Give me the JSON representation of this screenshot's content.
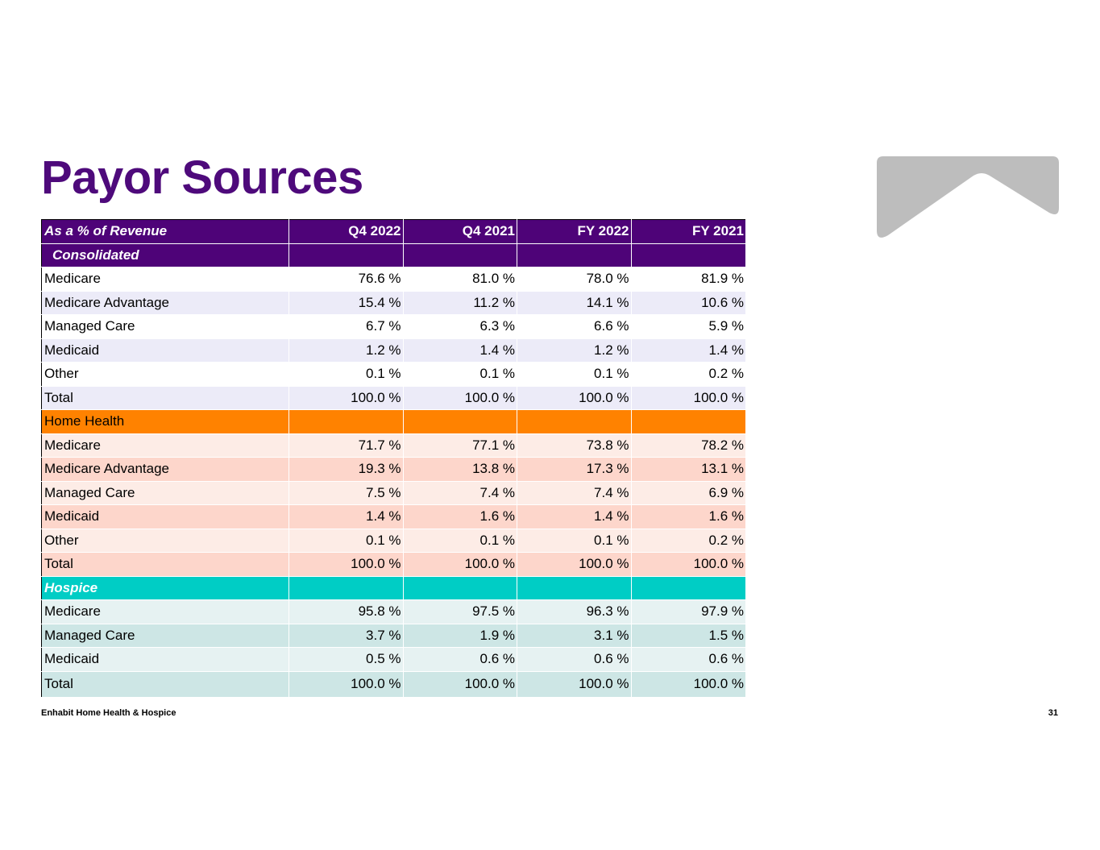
{
  "page": {
    "title": "Payor Sources",
    "footer_left": "Enhabit Home Health & Hospice",
    "page_number": "31"
  },
  "colors": {
    "brand_purple": "#4e0378",
    "home_health_orange": "#ff8200",
    "hospice_teal": "#00cdc5",
    "logo_gray": "#bdbdbd"
  },
  "table": {
    "headers": [
      "As a % of Revenue",
      "Q4 2022",
      "Q4 2021",
      "FY 2022",
      "FY 2021"
    ],
    "sections": [
      {
        "name": "Consolidated",
        "rows": [
          {
            "label": "Medicare",
            "values": [
              "76.6 %",
              "81.0 %",
              "78.0 %",
              "81.9 %"
            ]
          },
          {
            "label": "Medicare Advantage",
            "values": [
              "15.4 %",
              "11.2 %",
              "14.1 %",
              "10.6 %"
            ]
          },
          {
            "label": "Managed Care",
            "values": [
              "6.7 %",
              "6.3 %",
              "6.6 %",
              "5.9 %"
            ]
          },
          {
            "label": "Medicaid",
            "values": [
              "1.2 %",
              "1.4 %",
              "1.2 %",
              "1.4 %"
            ]
          },
          {
            "label": "Other",
            "values": [
              "0.1 %",
              "0.1 %",
              "0.1 %",
              "0.2 %"
            ]
          },
          {
            "label": "Total",
            "values": [
              "100.0 %",
              "100.0 %",
              "100.0 %",
              "100.0 %"
            ]
          }
        ]
      },
      {
        "name": "Home Health",
        "rows": [
          {
            "label": "Medicare",
            "values": [
              "71.7 %",
              "77.1 %",
              "73.8 %",
              "78.2 %"
            ]
          },
          {
            "label": "Medicare Advantage",
            "values": [
              "19.3 %",
              "13.8 %",
              "17.3 %",
              "13.1 %"
            ]
          },
          {
            "label": "Managed Care",
            "values": [
              "7.5 %",
              "7.4 %",
              "7.4 %",
              "6.9 %"
            ]
          },
          {
            "label": "Medicaid",
            "values": [
              "1.4 %",
              "1.6 %",
              "1.4 %",
              "1.6 %"
            ]
          },
          {
            "label": "Other",
            "values": [
              "0.1 %",
              "0.1 %",
              "0.1 %",
              "0.2 %"
            ]
          },
          {
            "label": "Total",
            "values": [
              "100.0 %",
              "100.0 %",
              "100.0 %",
              "100.0 %"
            ]
          }
        ]
      },
      {
        "name": "Hospice",
        "rows": [
          {
            "label": "Medicare",
            "values": [
              "95.8 %",
              "97.5 %",
              "96.3 %",
              "97.9 %"
            ]
          },
          {
            "label": "Managed Care",
            "values": [
              "3.7 %",
              "1.9 %",
              "3.1 %",
              "1.5 %"
            ]
          },
          {
            "label": "Medicaid",
            "values": [
              "0.5 %",
              "0.6 %",
              "0.6 %",
              "0.6 %"
            ]
          },
          {
            "label": "Total",
            "values": [
              "100.0 %",
              "100.0 %",
              "100.0 %",
              "100.0 %"
            ]
          }
        ]
      }
    ]
  }
}
